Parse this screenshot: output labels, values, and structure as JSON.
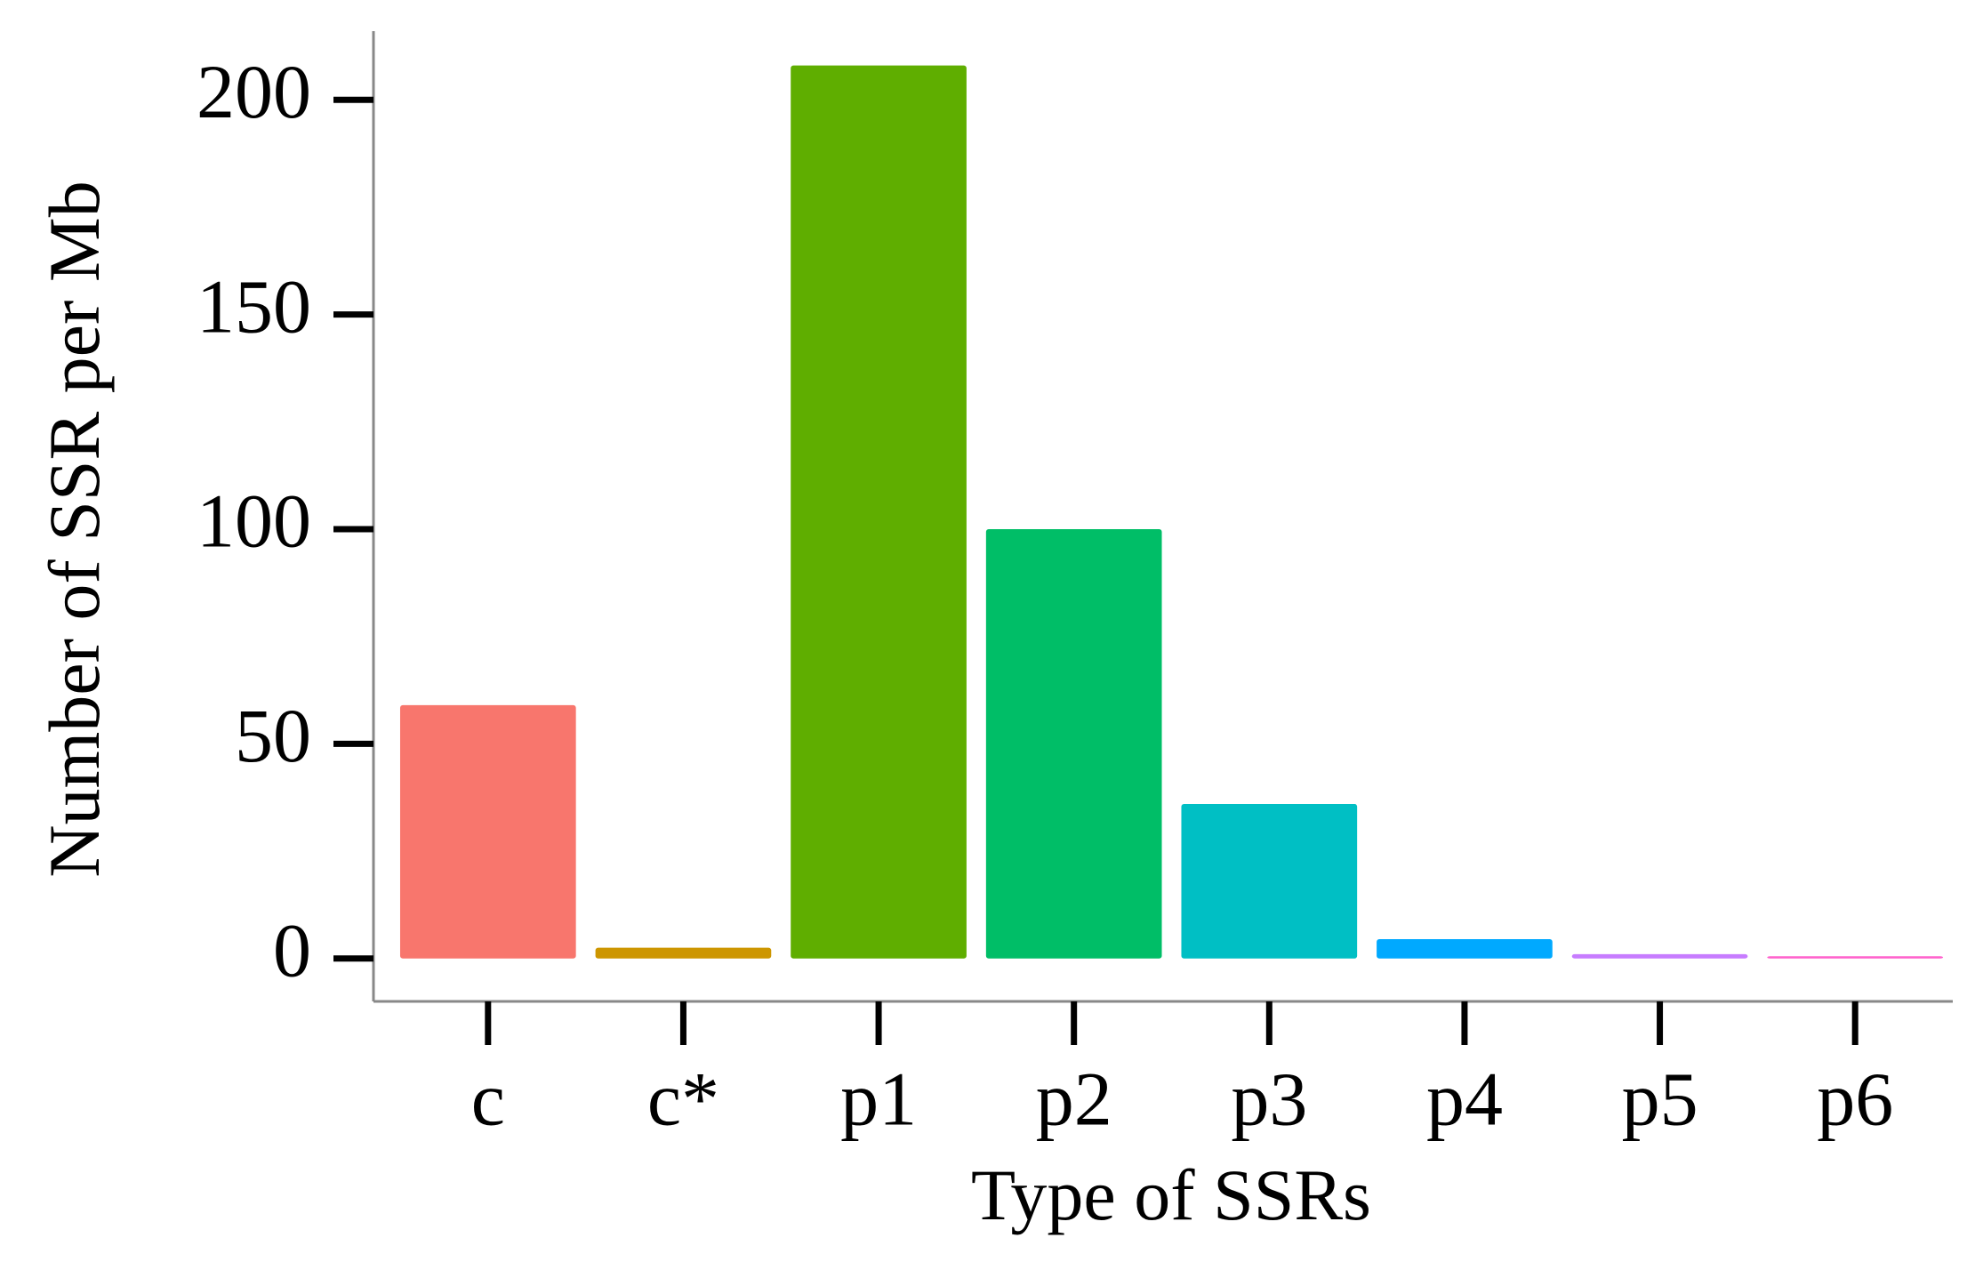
{
  "chart_data": {
    "type": "bar",
    "x_label": "Type of SSRs",
    "y_label": "Number of SSR per Mb",
    "categories": [
      "c",
      "c*",
      "p1",
      "p2",
      "p3",
      "p4",
      "p5",
      "p6"
    ],
    "values": [
      59,
      2.5,
      208,
      100,
      36,
      4.5,
      1,
      0.5
    ],
    "colors": [
      "#F8766D",
      "#CD9600",
      "#5FAE00",
      "#00BE67",
      "#00BFC4",
      "#00A9FF",
      "#C77CFF",
      "#FF61CC"
    ],
    "ylim": [
      -10,
      216
    ],
    "yticks": [
      0,
      50,
      100,
      150,
      200
    ]
  }
}
